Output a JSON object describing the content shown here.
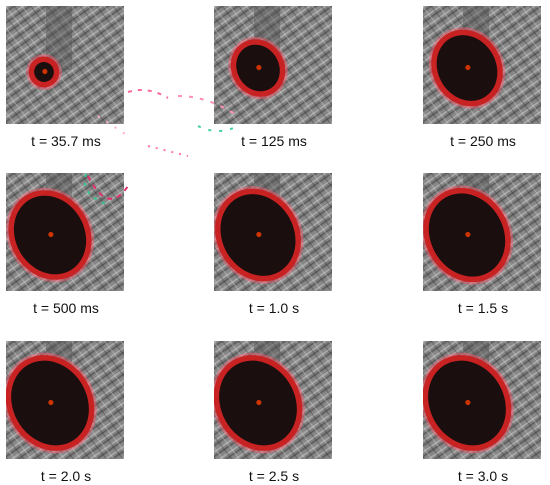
{
  "palette": {
    "background": "#ffffff",
    "surface_gray": "#7f7f7f",
    "spot_core": "#1a0e0e",
    "spot_rim": "#c81e1e",
    "spot_halo": "#ff5a6e",
    "center_dot": "#cc3300"
  },
  "panels": [
    {
      "label": "t = 35.7 ms",
      "spot_level": 0.15
    },
    {
      "label": "t = 125 ms",
      "spot_level": 0.5
    },
    {
      "label": "t = 250 ms",
      "spot_level": 0.75
    },
    {
      "label": "t = 500 ms",
      "spot_level": 0.92
    },
    {
      "label": "t = 1.0 s",
      "spot_level": 0.96
    },
    {
      "label": "t = 1.5 s",
      "spot_level": 0.98
    },
    {
      "label": "t = 2.0 s",
      "spot_level": 1.0
    },
    {
      "label": "t = 2.5 s",
      "spot_level": 1.0
    },
    {
      "label": "t = 3.0 s",
      "spot_level": 1.0
    }
  ]
}
